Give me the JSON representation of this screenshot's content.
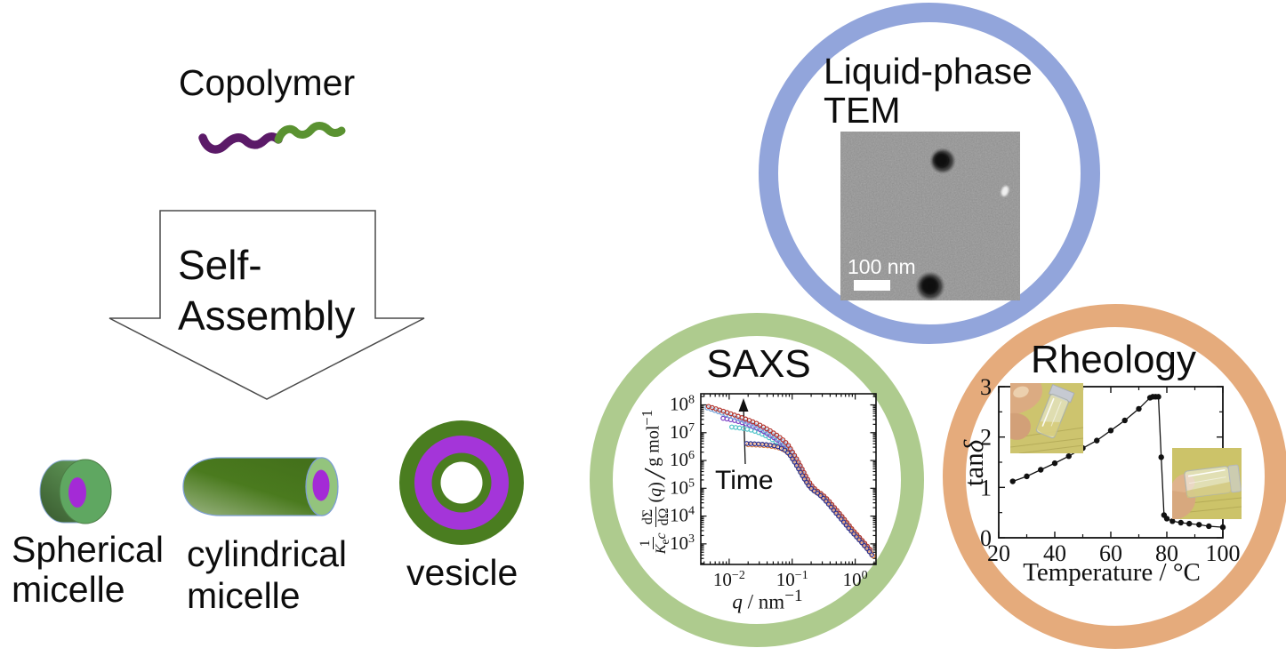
{
  "copolymer": {
    "label": "Copolymer"
  },
  "arrow": {
    "line1": "Self-",
    "line2": "Assembly"
  },
  "assemblies": {
    "spherical": {
      "line1": "Spherical",
      "line2": "micelle"
    },
    "cylindrical": {
      "line1": "cylindrical",
      "line2": "micelle"
    },
    "vesicle": {
      "label": "vesicle"
    }
  },
  "tem": {
    "title_line1": "Liquid-phase",
    "title_line2": "TEM",
    "scale_bar": "100 nm",
    "ring_color": "#92a5db"
  },
  "saxs": {
    "title": "SAXS",
    "annotation": "Time",
    "ring_color": "#aecb8e"
  },
  "rheology": {
    "title": "Rheology",
    "ring_color": "#e5ab7c"
  },
  "colors": {
    "polymer_purple": "#5b1a68",
    "polymer_green": "#5a9231",
    "micelle_green": "#5fa761",
    "micelle_light_green": "#93c47d",
    "core_purple": "#a42ad6",
    "vesicle_green": "#4a7d20",
    "vesicle_purple": "#a435d9"
  },
  "chart_data": [
    {
      "id": "saxs",
      "type": "scatter",
      "title": "SAXS",
      "x_scale": "log",
      "y_scale": "log",
      "xlim_exponents": [
        -2.45,
        0.33
      ],
      "ylim_exponents": [
        2.26,
        8.4
      ],
      "x_tick_exponents": [
        -2,
        -1,
        0
      ],
      "y_tick_exponents": [
        8,
        7,
        6,
        5,
        4,
        3
      ],
      "annotation": "Time",
      "xlabel_parts": {
        "symbol": "q",
        "sep": " / ",
        "unit": "nm",
        "exp": "−1"
      },
      "ylabel_parts": {
        "num1": "1",
        "den1_k": "K",
        "den1_sub": "e",
        "den1_c": "c",
        "num2": "dΣ",
        "den2": "dΩ",
        "arg_open": "(",
        "arg_q": "q",
        "arg_close": ")",
        "slash": "/",
        "unit": "g mol",
        "unit_exp": "−1"
      },
      "series": [
        {
          "name": "early-cyan",
          "color": "#4fc3c8",
          "points": [
            [
              0.011,
              16000000.0
            ],
            [
              0.014,
              15000000.0
            ],
            [
              0.018,
              13800000.0
            ],
            [
              0.023,
              12200000.0
            ],
            [
              0.029,
              10200000.0
            ],
            [
              0.037,
              8000000.0
            ],
            [
              0.046,
              6000000.0
            ],
            [
              0.058,
              4400000.0
            ],
            [
              0.072,
              3100000.0
            ],
            [
              0.088,
              2000000.0
            ],
            [
              0.105,
              1100000.0
            ],
            [
              0.125,
              550000.0
            ],
            [
              0.15,
              260000.0
            ],
            [
              0.18,
              135000.0
            ],
            [
              0.22,
              82000.0
            ],
            [
              0.27,
              60000.0
            ],
            [
              0.34,
              37000.0
            ],
            [
              0.43,
              20000.0
            ],
            [
              0.54,
              11000.0
            ],
            [
              0.68,
              5800.0
            ],
            [
              0.86,
              3100.0
            ],
            [
              1.08,
              1750.0
            ],
            [
              1.35,
              1000.0
            ],
            [
              1.7,
              560.0
            ]
          ]
        },
        {
          "name": "mid-purple",
          "color": "#7b3fc4",
          "points": [
            [
              0.008,
              33000000.0
            ],
            [
              0.01,
              30000000.0
            ],
            [
              0.013,
              26500000.0
            ],
            [
              0.016,
              23000000.0
            ],
            [
              0.02,
              19500000.0
            ],
            [
              0.026,
              15500000.0
            ],
            [
              0.033,
              12000000.0
            ],
            [
              0.041,
              9000000.0
            ],
            [
              0.051,
              6600000.0
            ],
            [
              0.064,
              4700000.0
            ],
            [
              0.079,
              3200000.0
            ],
            [
              0.095,
              2000000.0
            ],
            [
              0.112,
              1050000.0
            ],
            [
              0.132,
              550000.0
            ],
            [
              0.158,
              260000.0
            ],
            [
              0.185,
              135000.0
            ],
            [
              0.22,
              85000.0
            ],
            [
              0.27,
              61000.0
            ],
            [
              0.34,
              38000.0
            ],
            [
              0.43,
              21000.0
            ],
            [
              0.54,
              11500.0
            ],
            [
              0.68,
              6000.0
            ],
            [
              0.86,
              3200.0
            ],
            [
              1.08,
              1800.0
            ],
            [
              1.35,
              1050.0
            ],
            [
              1.7,
              580.0
            ]
          ]
        },
        {
          "name": "late-lightblue",
          "color": "#6f9fd8",
          "points": [
            [
              0.0045,
              78000000.0
            ],
            [
              0.0058,
              64000000.0
            ],
            [
              0.0075,
              52000000.0
            ],
            [
              0.0097,
              42000000.0
            ],
            [
              0.0125,
              34000000.0
            ],
            [
              0.016,
              27500000.0
            ],
            [
              0.021,
              22000000.0
            ],
            [
              0.027,
              17500000.0
            ],
            [
              0.034,
              13500000.0
            ],
            [
              0.043,
              10000000.0
            ],
            [
              0.054,
              7200000.0
            ],
            [
              0.068,
              4900000.0
            ],
            [
              0.084,
              3200000.0
            ],
            [
              0.1,
              1800000.0
            ],
            [
              0.118,
              950000.0
            ],
            [
              0.14,
              480000.0
            ],
            [
              0.165,
              230000.0
            ],
            [
              0.195,
              125000.0
            ],
            [
              0.235,
              80000.0
            ],
            [
              0.29,
              59000.0
            ],
            [
              0.36,
              37000.0
            ],
            [
              0.46,
              19500.0
            ],
            [
              0.58,
              10500.0
            ],
            [
              0.73,
              5500.0
            ],
            [
              0.92,
              2900.0
            ],
            [
              1.15,
              1600.0
            ],
            [
              1.45,
              900.0
            ],
            [
              1.8,
              500.0
            ]
          ]
        },
        {
          "name": "late-red",
          "color": "#b03028",
          "points": [
            [
              0.0047,
              88000000.0
            ],
            [
              0.006,
              74000000.0
            ],
            [
              0.0078,
              61000000.0
            ],
            [
              0.01,
              50000000.0
            ],
            [
              0.013,
              41000000.0
            ],
            [
              0.017,
              33000000.0
            ],
            [
              0.022,
              26500000.0
            ],
            [
              0.028,
              21000000.0
            ],
            [
              0.035,
              16000000.0
            ],
            [
              0.044,
              12000000.0
            ],
            [
              0.055,
              8600000.0
            ],
            [
              0.069,
              5900000.0
            ],
            [
              0.085,
              3800000.0
            ],
            [
              0.1,
              2100000.0
            ],
            [
              0.12,
              1050000.0
            ],
            [
              0.142,
              520000.0
            ],
            [
              0.168,
              250000.0
            ],
            [
              0.2,
              130000.0
            ],
            [
              0.24,
              85000.0
            ],
            [
              0.3,
              60000.0
            ],
            [
              0.37,
              38000.0
            ],
            [
              0.47,
              20000.0
            ],
            [
              0.59,
              11000.0
            ],
            [
              0.74,
              5800.0
            ],
            [
              0.93,
              3000.0
            ],
            [
              1.17,
              1700.0
            ],
            [
              1.47,
              950.0
            ],
            [
              1.85,
              520.0
            ]
          ]
        },
        {
          "name": "initial-orange",
          "color": "#e07b3a",
          "points": [
            [
              0.02,
              3700000.0
            ],
            [
              0.026,
              3600000.0
            ],
            [
              0.033,
              3500000.0
            ],
            [
              0.042,
              3350000.0
            ],
            [
              0.053,
              3100000.0
            ],
            [
              0.067,
              2700000.0
            ],
            [
              0.082,
              2100000.0
            ],
            [
              0.098,
              1400000.0
            ],
            [
              0.115,
              800000.0
            ],
            [
              0.135,
              420000.0
            ],
            [
              0.16,
              210000.0
            ],
            [
              0.19,
              115000.0
            ],
            [
              0.23,
              78000.0
            ],
            [
              0.28,
              58000.0
            ],
            [
              0.35,
              36000.0
            ],
            [
              0.44,
              19000.0
            ],
            [
              0.55,
              10500.0
            ],
            [
              0.7,
              5600.0
            ],
            [
              0.88,
              3000.0
            ],
            [
              1.1,
              1700.0
            ],
            [
              1.4,
              900.0
            ],
            [
              1.75,
              500.0
            ],
            [
              2.0,
              320.0
            ]
          ]
        },
        {
          "name": "initial-navy",
          "color": "#2a2f8f",
          "points": [
            [
              0.019,
              4100000.0
            ],
            [
              0.024,
              4000000.0
            ],
            [
              0.03,
              3900000.0
            ],
            [
              0.038,
              3750000.0
            ],
            [
              0.048,
              3500000.0
            ],
            [
              0.06,
              3100000.0
            ],
            [
              0.075,
              2450000.0
            ],
            [
              0.09,
              1700000.0
            ],
            [
              0.105,
              1000000.0
            ],
            [
              0.125,
              520000.0
            ],
            [
              0.15,
              250000.0
            ],
            [
              0.18,
              130000.0
            ],
            [
              0.21,
              88000.0
            ],
            [
              0.26,
              64000.0
            ],
            [
              0.32,
              42000.0
            ],
            [
              0.4,
              23000.0
            ],
            [
              0.5,
              12500.0
            ],
            [
              0.63,
              6800.0
            ],
            [
              0.8,
              3500.0
            ],
            [
              1.0,
              2000.0
            ],
            [
              1.25,
              1150.0
            ],
            [
              1.55,
              660.0
            ],
            [
              1.9,
              360.0
            ]
          ]
        }
      ]
    },
    {
      "id": "rheology",
      "type": "line",
      "title": "Rheology",
      "xlabel": "Temperature / °C",
      "ylabel_parts": {
        "roman": "tan",
        "italic": "δ"
      },
      "xlim": [
        20,
        100
      ],
      "ylim": [
        0,
        3
      ],
      "x_ticks": [
        20,
        40,
        60,
        80,
        100
      ],
      "y_ticks": [
        0,
        1,
        2,
        3
      ],
      "x": [
        25,
        30,
        35,
        40,
        45,
        50,
        55,
        60,
        65,
        70,
        74,
        75,
        76,
        77,
        78,
        79,
        80,
        82,
        85,
        88,
        91.5,
        95,
        100
      ],
      "y": [
        1.12,
        1.22,
        1.35,
        1.48,
        1.62,
        1.78,
        1.93,
        2.13,
        2.33,
        2.56,
        2.78,
        2.8,
        2.8,
        2.8,
        1.6,
        0.45,
        0.38,
        0.33,
        0.3,
        0.28,
        0.26,
        0.23,
        0.21
      ]
    }
  ]
}
